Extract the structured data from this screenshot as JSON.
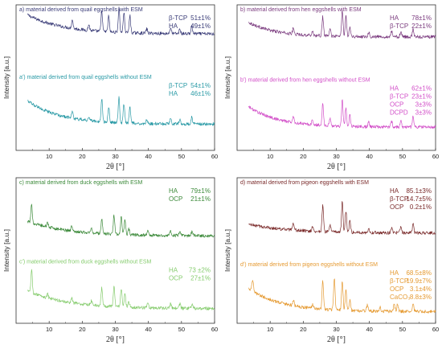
{
  "chart_data": [
    {
      "type": "line",
      "xlabel": "2θ [°]",
      "ylabel": "Intensity [a.u.]",
      "xlim": [
        0,
        60
      ],
      "xticks": [
        10,
        20,
        30,
        40,
        50,
        60
      ],
      "traces": [
        {
          "label": "a) material derived from quail eggshells with ESM",
          "color": "#3a3c78",
          "baseline": 0.8,
          "amp": 0.13,
          "decay": 0.09,
          "peaks": [
            [
              17,
              0.06
            ],
            [
              22,
              0.04
            ],
            [
              25.9,
              0.14
            ],
            [
              28,
              0.11
            ],
            [
              31.1,
              0.17
            ],
            [
              32.6,
              0.14
            ],
            [
              34.4,
              0.12
            ],
            [
              39.5,
              0.03
            ],
            [
              46.7,
              0.04
            ],
            [
              49.5,
              0.03
            ],
            [
              53.1,
              0.05
            ]
          ],
          "phases": [
            {
              "name": "β-TCP",
              "value": "51±1%"
            },
            {
              "name": "HA",
              "value": "49±1%"
            }
          ]
        },
        {
          "label": "a') material derived from quail eggshells without ESM",
          "color": "#2a9aa6",
          "baseline": 0.18,
          "amp": 0.16,
          "decay": 0.1,
          "peaks": [
            [
              17,
              0.05
            ],
            [
              22,
              0.03
            ],
            [
              25.9,
              0.16
            ],
            [
              28,
              0.11
            ],
            [
              31.1,
              0.18
            ],
            [
              32.6,
              0.13
            ],
            [
              34.4,
              0.11
            ],
            [
              39.5,
              0.03
            ],
            [
              46.7,
              0.04
            ],
            [
              49.5,
              0.03
            ],
            [
              53.1,
              0.05
            ]
          ],
          "phases": [
            {
              "name": "β-TCP",
              "value": "54±1%"
            },
            {
              "name": "HA",
              "value": "46±1%"
            }
          ]
        }
      ],
      "series": [
        {
          "name": "a) material derived from quail eggshells with ESM"
        },
        {
          "name": "a') material derived from quail eggshells without ESM"
        }
      ]
    },
    {
      "type": "line",
      "xlabel": "2θ [°]",
      "ylabel": "Intensity [a.u.]",
      "xlim": [
        0,
        60
      ],
      "xticks": [
        10,
        20,
        30,
        40,
        50,
        60
      ],
      "traces": [
        {
          "label": "b) material derived from hen eggshells with ESM",
          "color": "#7a3a7e",
          "baseline": 0.78,
          "amp": 0.1,
          "decay": 0.12,
          "peaks": [
            [
              17,
              0.04
            ],
            [
              22.8,
              0.03
            ],
            [
              25.9,
              0.13
            ],
            [
              28.1,
              0.05
            ],
            [
              31.8,
              0.18
            ],
            [
              32.9,
              0.14
            ],
            [
              34.1,
              0.07
            ],
            [
              39.8,
              0.03
            ],
            [
              46.7,
              0.04
            ],
            [
              49.5,
              0.04
            ],
            [
              53.2,
              0.05
            ]
          ],
          "phases": [
            {
              "name": "HA",
              "value": "78±1%"
            },
            {
              "name": "β-TCP",
              "value": "22±1%"
            }
          ]
        },
        {
          "label": "b') material derived from hen eggshells without ESM",
          "color": "#d24fc8",
          "baseline": 0.16,
          "amp": 0.14,
          "decay": 0.11,
          "peaks": [
            [
              17,
              0.04
            ],
            [
              22.8,
              0.03
            ],
            [
              25.9,
              0.15
            ],
            [
              28.1,
              0.05
            ],
            [
              31.8,
              0.18
            ],
            [
              32.9,
              0.13
            ],
            [
              34.1,
              0.08
            ],
            [
              39.8,
              0.03
            ],
            [
              46.7,
              0.04
            ],
            [
              49.5,
              0.04
            ],
            [
              53.2,
              0.08
            ]
          ],
          "phases": [
            {
              "name": "HA",
              "value": "62±1%"
            },
            {
              "name": "β-TCP",
              "value": "23±1%"
            },
            {
              "name": "OCP",
              "value": "3±3%"
            },
            {
              "name": "DCPD",
              "value": "3±3%"
            }
          ]
        }
      ],
      "series": [
        {
          "name": "b) material derived from hen eggshells with ESM"
        },
        {
          "name": "b') material derived from hen eggshells without ESM"
        }
      ]
    },
    {
      "type": "line",
      "xlabel": "2θ [°]",
      "ylabel": "Intensity [a.u.]",
      "xlim": [
        0,
        60
      ],
      "xticks": [
        10,
        20,
        30,
        40,
        50,
        60
      ],
      "traces": [
        {
          "label": "c) material derived from duck eggshells with ESM",
          "color": "#3c8a3a",
          "baseline": 0.6,
          "amp": 0.1,
          "decay": 0.08,
          "peaks": [
            [
              4.7,
              0.12
            ],
            [
              9.5,
              0.03
            ],
            [
              16.8,
              0.03
            ],
            [
              22.8,
              0.03
            ],
            [
              25.9,
              0.1
            ],
            [
              29.6,
              0.13
            ],
            [
              31.8,
              0.13
            ],
            [
              32.9,
              0.1
            ],
            [
              34.1,
              0.04
            ],
            [
              39.8,
              0.03
            ],
            [
              46.7,
              0.03
            ],
            [
              49.5,
              0.03
            ],
            [
              53.2,
              0.03
            ]
          ],
          "phases": [
            {
              "name": "HA",
              "value": "79±1%"
            },
            {
              "name": "OCP",
              "value": "21±1%"
            }
          ]
        },
        {
          "label": "c') material derived from duck eggshells without ESM",
          "color": "#86cc6e",
          "baseline": 0.1,
          "amp": 0.12,
          "decay": 0.08,
          "peaks": [
            [
              4.7,
              0.16
            ],
            [
              9.5,
              0.03
            ],
            [
              16.8,
              0.03
            ],
            [
              22.8,
              0.03
            ],
            [
              25.9,
              0.12
            ],
            [
              29.6,
              0.14
            ],
            [
              31.8,
              0.13
            ],
            [
              32.9,
              0.1
            ],
            [
              34.1,
              0.04
            ],
            [
              39.8,
              0.03
            ],
            [
              46.7,
              0.03
            ],
            [
              49.5,
              0.03
            ],
            [
              53.2,
              0.03
            ]
          ],
          "phases": [
            {
              "name": "HA",
              "value": "73 ±2%"
            },
            {
              "name": "OCP",
              "value": "27±1%"
            }
          ]
        }
      ],
      "series": [
        {
          "name": "c) material derived from duck eggshells with ESM"
        },
        {
          "name": "c') material derived from duck eggshells without ESM"
        }
      ]
    },
    {
      "type": "line",
      "xlabel": "2θ [°]",
      "ylabel": "Intensity [a.u.]",
      "xlim": [
        0,
        60
      ],
      "xticks": [
        10,
        20,
        30,
        40,
        50,
        60
      ],
      "traces": [
        {
          "label": "d) material derived from pigeon eggshells with ESM",
          "color": "#7a2a2a",
          "baseline": 0.62,
          "amp": 0.06,
          "decay": 0.08,
          "peaks": [
            [
              17,
              0.04
            ],
            [
              22.8,
              0.03
            ],
            [
              25.9,
              0.18
            ],
            [
              28.1,
              0.05
            ],
            [
              31.8,
              0.21
            ],
            [
              32.9,
              0.15
            ],
            [
              34.1,
              0.08
            ],
            [
              39.8,
              0.03
            ],
            [
              46.7,
              0.04
            ],
            [
              49.5,
              0.04
            ],
            [
              53.2,
              0.06
            ]
          ],
          "phases": [
            {
              "name": "HA",
              "value": "85.1±3%"
            },
            {
              "name": "β-TCP",
              "value": "14.7±5%"
            },
            {
              "name": "OCP",
              "value": "0.2±1%"
            }
          ]
        },
        {
          "label": "d') material derived from pigeon eggshells without ESM",
          "color": "#e59a32",
          "baseline": 0.08,
          "amp": 0.16,
          "decay": 0.1,
          "peaks": [
            [
              4.7,
              0.08
            ],
            [
              17,
              0.04
            ],
            [
              22.8,
              0.03
            ],
            [
              25.9,
              0.2
            ],
            [
              29.4,
              0.22
            ],
            [
              31.8,
              0.2
            ],
            [
              32.9,
              0.14
            ],
            [
              34.1,
              0.07
            ],
            [
              39.4,
              0.04
            ],
            [
              43.2,
              0.03
            ],
            [
              47.5,
              0.05
            ],
            [
              48.5,
              0.05
            ],
            [
              53.2,
              0.06
            ]
          ],
          "phases": [
            {
              "name": "HA",
              "value": "68.5±8%"
            },
            {
              "name": "β-TCP",
              "value": "19.9±7%"
            },
            {
              "name": "OCP",
              "value": "3.1±4%"
            },
            {
              "name": "CaCO₃",
              "value": "8.8±3%"
            }
          ]
        }
      ],
      "series": [
        {
          "name": "d) material derived from pigeon eggshells with ESM"
        },
        {
          "name": "d') material derived from pigeon eggshells without ESM"
        }
      ]
    }
  ]
}
